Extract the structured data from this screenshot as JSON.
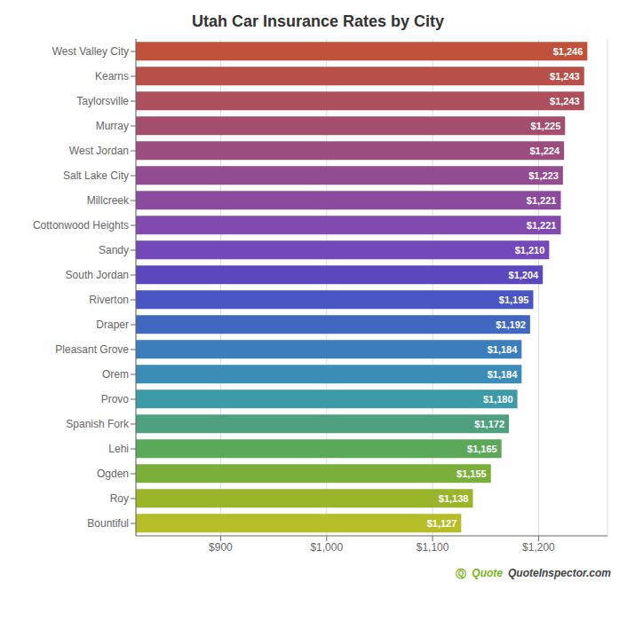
{
  "chart_data": {
    "type": "bar",
    "orientation": "horizontal",
    "title": "Utah Car Insurance Rates by City",
    "categories": [
      "West Valley City",
      "Kearns",
      "Taylorsville",
      "Murray",
      "West Jordan",
      "Salt Lake City",
      "Millcreek",
      "Cottonwood Heights",
      "Sandy",
      "South Jordan",
      "Riverton",
      "Draper",
      "Pleasant Grove",
      "Orem",
      "Provo",
      "Spanish Fork",
      "Lehi",
      "Ogden",
      "Roy",
      "Bountiful"
    ],
    "values": [
      1246,
      1243,
      1243,
      1225,
      1224,
      1223,
      1221,
      1221,
      1210,
      1204,
      1195,
      1192,
      1184,
      1184,
      1180,
      1172,
      1165,
      1155,
      1138,
      1127
    ],
    "value_labels": [
      "$1,246",
      "$1,243",
      "$1,243",
      "$1,225",
      "$1,224",
      "$1,223",
      "$1,221",
      "$1,221",
      "$1,210",
      "$1,204",
      "$1,195",
      "$1,192",
      "$1,184",
      "$1,184",
      "$1,180",
      "$1,172",
      "$1,165",
      "$1,155",
      "$1,138",
      "$1,127"
    ],
    "data_labels": true,
    "colors": [
      "#C0513A",
      "#B8504A",
      "#AD4F5D",
      "#A44E6E",
      "#9B4D7F",
      "#924C90",
      "#8A4B9F",
      "#8249AE",
      "#7448B8",
      "#5C47BF",
      "#4A56C4",
      "#4068C0",
      "#3B7EBB",
      "#3B8DB8",
      "#3D9BA8",
      "#4EA080",
      "#5CA85A",
      "#7AAF3A",
      "#9AB52A",
      "#B5BE26"
    ],
    "xlim": [
      820,
      1265
    ],
    "xticks": [
      {
        "value": 900,
        "label": "$900"
      },
      {
        "value": 1000,
        "label": "$1,000"
      },
      {
        "value": 1100,
        "label": "$1,100"
      },
      {
        "value": 1200,
        "label": "$1,200"
      }
    ],
    "grid": true,
    "annotations": [
      {
        "text": "Ⓠ",
        "color": "#7ab317"
      },
      {
        "text": "Quote",
        "color": "#7ab317"
      },
      {
        "text": "QuoteInspector.com",
        "color": "#444444"
      }
    ]
  }
}
